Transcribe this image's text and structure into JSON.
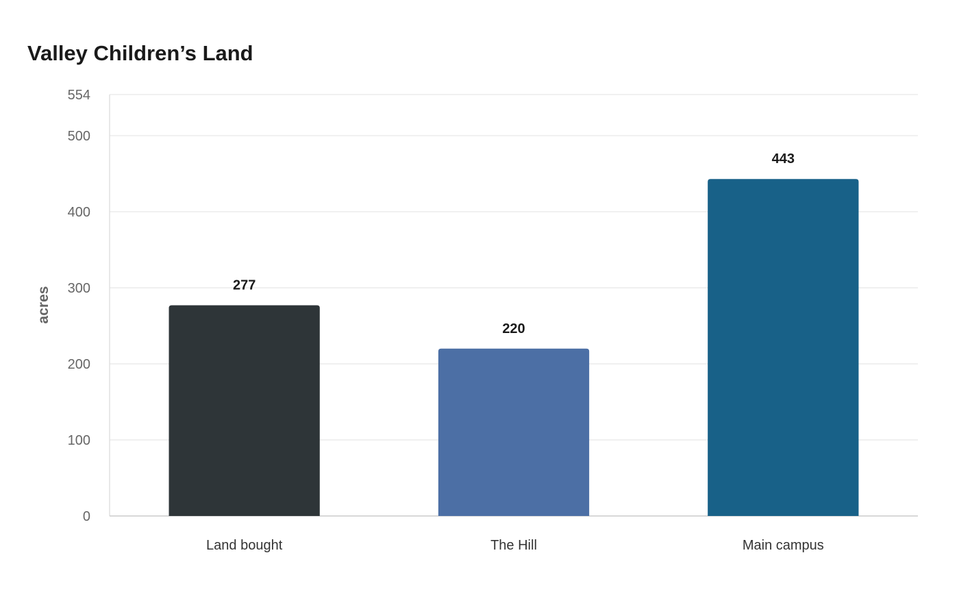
{
  "chart_data": {
    "type": "bar",
    "title": "Valley Children’s Land",
    "xlabel": "",
    "ylabel": "acres",
    "categories": [
      "Land bought",
      "The Hill",
      "Main campus"
    ],
    "values": [
      277,
      220,
      443
    ],
    "data_labels": [
      "277",
      "220",
      "443"
    ],
    "colors": [
      "#2e3538",
      "#4c6fa5",
      "#186188"
    ],
    "ylim": [
      0,
      554
    ],
    "yticks": [
      0,
      100,
      200,
      300,
      400,
      500,
      554
    ],
    "grid": true,
    "legend": "none"
  }
}
